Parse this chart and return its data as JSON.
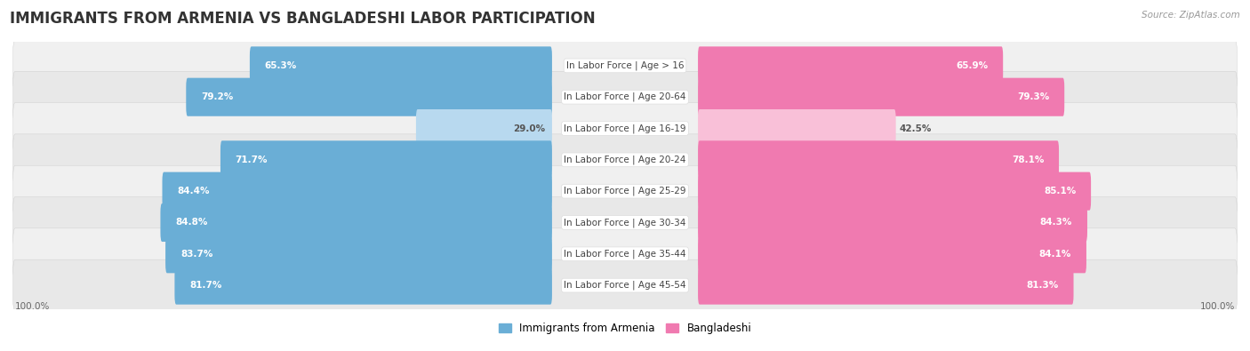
{
  "title": "IMMIGRANTS FROM ARMENIA VS BANGLADESHI LABOR PARTICIPATION",
  "source": "Source: ZipAtlas.com",
  "categories": [
    "In Labor Force | Age > 16",
    "In Labor Force | Age 20-64",
    "In Labor Force | Age 16-19",
    "In Labor Force | Age 20-24",
    "In Labor Force | Age 25-29",
    "In Labor Force | Age 30-34",
    "In Labor Force | Age 35-44",
    "In Labor Force | Age 45-54"
  ],
  "armenia_values": [
    65.3,
    79.2,
    29.0,
    71.7,
    84.4,
    84.8,
    83.7,
    81.7
  ],
  "bangladeshi_values": [
    65.9,
    79.3,
    42.5,
    78.1,
    85.1,
    84.3,
    84.1,
    81.3
  ],
  "armenia_color": "#6aaed6",
  "bangladesh_color": "#f07ab0",
  "armenia_color_light": "#b8d9ef",
  "bangladesh_color_light": "#f9c0d8",
  "row_bg_color_odd": "#f0f0f0",
  "row_bg_color_even": "#e8e8e8",
  "legend_armenia": "Immigrants from Armenia",
  "legend_bangladeshi": "Bangladeshi",
  "title_fontsize": 12,
  "label_fontsize": 7.5,
  "value_fontsize": 7.5,
  "max_value": 100.0,
  "footer_value": "100.0%",
  "background_color": "#ffffff"
}
